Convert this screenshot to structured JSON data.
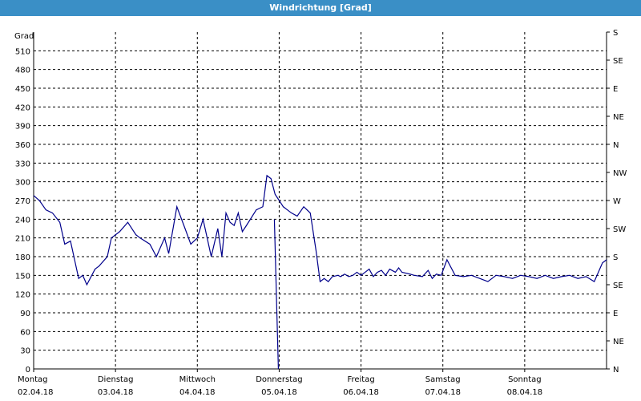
{
  "window": {
    "title": "Windrichtung [Grad]"
  },
  "colors": {
    "titlebar": "#3a8fc6",
    "line": "#00008b",
    "grid": "#000000"
  },
  "chart_data": {
    "type": "line",
    "title": "Windrichtung [Grad]",
    "ylabel": "Grad",
    "ylim": [
      0,
      540
    ],
    "y_ticks": [
      0,
      30,
      60,
      90,
      120,
      150,
      180,
      210,
      240,
      270,
      300,
      330,
      360,
      390,
      420,
      450,
      480,
      510
    ],
    "right_axis_ticks": [
      "N",
      "NE",
      "E",
      "SE",
      "S",
      "SW",
      "W",
      "NW",
      "N",
      "NE",
      "E",
      "SE",
      "S"
    ],
    "x_categories": [
      {
        "day": "Montag",
        "date": "02.04.18"
      },
      {
        "day": "Dienstag",
        "date": "03.04.18"
      },
      {
        "day": "Mittwoch",
        "date": "04.04.18"
      },
      {
        "day": "Donnerstag",
        "date": "05.04.18"
      },
      {
        "day": "Freitag",
        "date": "06.04.18"
      },
      {
        "day": "Samstag",
        "date": "07.04.18"
      },
      {
        "day": "Sonntag",
        "date": "08.04.18"
      }
    ],
    "xlim": [
      0,
      7
    ],
    "grid": true,
    "series": [
      {
        "x": [
          0,
          0.07,
          0.15,
          0.23,
          0.32,
          0.38,
          0.45,
          0.55,
          0.6,
          0.65,
          0.75,
          0.8,
          0.9,
          0.95,
          1.05,
          1.15,
          1.25,
          1.3,
          1.42,
          1.5,
          1.6,
          1.65,
          1.75,
          1.85,
          1.92,
          2.0,
          2.07,
          2.17,
          2.25,
          2.3,
          2.35,
          2.4,
          2.45,
          2.5,
          2.55,
          2.6,
          2.72,
          2.8,
          2.85,
          2.9,
          2.95,
          3.0,
          3.05,
          3.1,
          3.15,
          3.22,
          3.3,
          3.38,
          3.45,
          3.5,
          3.55,
          3.6,
          3.65,
          3.72,
          3.75,
          3.8,
          3.85,
          3.9,
          3.95,
          4.0,
          4.05,
          4.1,
          4.15,
          4.2,
          4.25,
          4.3,
          4.35,
          4.42,
          4.46,
          4.5,
          4.6,
          4.65,
          4.75,
          4.82,
          4.87,
          4.92,
          4.98,
          5.05,
          5.15,
          5.25,
          5.35,
          5.45,
          5.55,
          5.65,
          5.75,
          5.85,
          5.95,
          6.05,
          6.15,
          6.25,
          6.35,
          6.45,
          6.55,
          6.65,
          6.75,
          6.85,
          6.95,
          7.0
        ],
        "values": [
          278,
          270,
          255,
          250,
          235,
          200,
          205,
          145,
          150,
          135,
          160,
          165,
          180,
          210,
          220,
          235,
          215,
          210,
          200,
          180,
          210,
          185,
          260,
          225,
          200,
          210,
          240,
          180,
          225,
          180,
          250,
          235,
          230,
          250,
          220,
          230,
          255,
          260,
          310,
          305,
          280,
          270,
          260,
          255,
          250,
          245,
          260,
          250,
          190,
          140,
          145,
          140,
          148,
          150,
          148,
          152,
          148,
          150,
          155,
          150,
          155,
          160,
          148,
          155,
          158,
          150,
          160,
          155,
          162,
          155,
          152,
          150,
          148,
          158,
          145,
          152,
          150,
          175,
          150,
          148,
          150,
          145,
          140,
          150,
          148,
          145,
          150,
          148,
          145,
          150,
          145,
          148,
          150,
          145,
          148,
          140,
          170,
          175
        ]
      }
    ],
    "notes_dropout": {
      "x": [
        3.0,
        3.05
      ],
      "values": [
        240,
        0
      ]
    }
  }
}
